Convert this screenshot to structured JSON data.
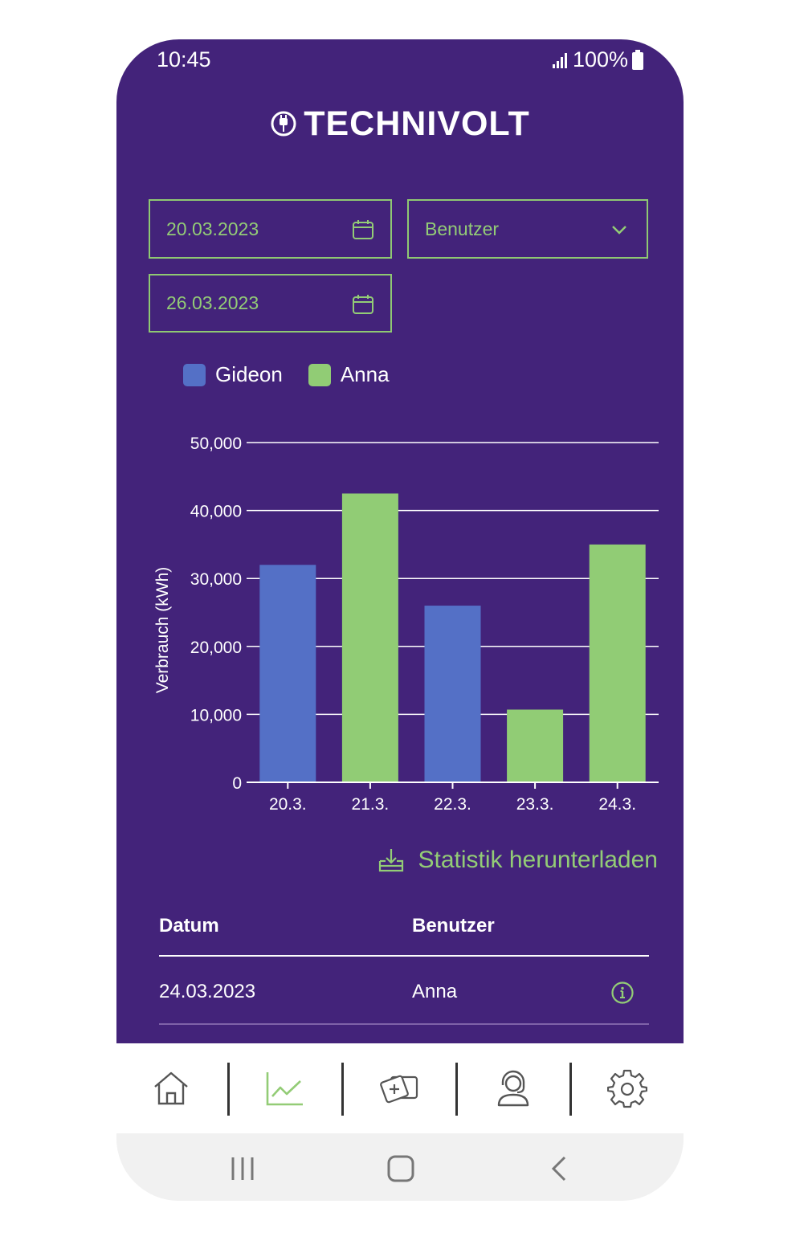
{
  "status": {
    "time": "10:45",
    "battery": "100%"
  },
  "brand": {
    "name": "TECHNIVOLT"
  },
  "filters": {
    "date_from": "20.03.2023",
    "date_to": "26.03.2023",
    "user_select": "Benutzer"
  },
  "colors": {
    "background": "#43237a",
    "accent": "#93cc76",
    "gideon": "#5470c6",
    "anna": "#91cc75"
  },
  "chart_data": {
    "type": "bar",
    "ylabel": "Verbrauch (kWh)",
    "xlabel": "",
    "ylim": [
      0,
      50000
    ],
    "yticks": [
      "0",
      "10,000",
      "20,000",
      "30,000",
      "40,000",
      "50,000"
    ],
    "categories": [
      "20.3.",
      "21.3.",
      "22.3.",
      "23.3.",
      "24.3."
    ],
    "legend": [
      {
        "name": "Gideon",
        "color": "#5470c6"
      },
      {
        "name": "Anna",
        "color": "#91cc75"
      }
    ],
    "bars": [
      {
        "category": "20.3.",
        "user": "Gideon",
        "value": 32000,
        "color": "#5470c6"
      },
      {
        "category": "21.3.",
        "user": "Anna",
        "value": 42500,
        "color": "#91cc75"
      },
      {
        "category": "22.3.",
        "user": "Gideon",
        "value": 26000,
        "color": "#5470c6"
      },
      {
        "category": "23.3.",
        "user": "Anna",
        "value": 10700,
        "color": "#91cc75"
      },
      {
        "category": "24.3.",
        "user": "Anna",
        "value": 35000,
        "color": "#91cc75"
      }
    ],
    "grid": true,
    "legend_position": "top-left"
  },
  "download": {
    "label": "Statistik herunterladen"
  },
  "table": {
    "headers": {
      "date": "Datum",
      "user": "Benutzer"
    },
    "rows": [
      {
        "date": "24.03.2023",
        "user": "Anna"
      }
    ]
  },
  "nav": {
    "items": [
      "home-icon",
      "chart-icon",
      "add-card-icon",
      "support-icon",
      "settings-icon"
    ],
    "active": "chart-icon"
  }
}
